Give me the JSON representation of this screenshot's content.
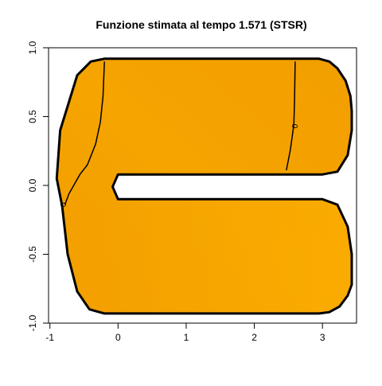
{
  "chart_data": {
    "type": "heatmap",
    "title": "Funzione stimata al tempo 1.571 (STSR)",
    "xlabel": "",
    "ylabel": "",
    "xlim": [
      -1.02,
      3.5
    ],
    "ylim": [
      -1.0,
      1.0
    ],
    "x_ticks": [
      -1,
      0,
      1,
      2,
      3
    ],
    "y_ticks": [
      -1.0,
      -0.5,
      0.0,
      0.5,
      1.0
    ],
    "grid": false,
    "colors": {
      "fill_light": "#ffb200",
      "fill_mid": "#f5a400",
      "fill_dark": "#f29e00",
      "outline": "#000000"
    },
    "domain_outline": [
      [
        -0.2,
        0.92
      ],
      [
        2.95,
        0.92
      ],
      [
        3.1,
        0.9
      ],
      [
        3.22,
        0.85
      ],
      [
        3.34,
        0.76
      ],
      [
        3.41,
        0.65
      ],
      [
        3.43,
        0.54
      ],
      [
        3.43,
        0.4
      ],
      [
        3.37,
        0.22
      ],
      [
        3.22,
        0.1
      ],
      [
        3.0,
        0.08
      ],
      [
        0.0,
        0.08
      ],
      [
        -0.08,
        -0.01
      ],
      [
        0.0,
        -0.1
      ],
      [
        3.0,
        -0.1
      ],
      [
        3.22,
        -0.14
      ],
      [
        3.37,
        -0.3
      ],
      [
        3.43,
        -0.5
      ],
      [
        3.43,
        -0.72
      ],
      [
        3.37,
        -0.8
      ],
      [
        3.25,
        -0.88
      ],
      [
        3.1,
        -0.92
      ],
      [
        2.95,
        -0.93
      ],
      [
        -0.2,
        -0.93
      ],
      [
        -0.42,
        -0.9
      ],
      [
        -0.6,
        -0.77
      ],
      [
        -0.74,
        -0.5
      ],
      [
        -0.82,
        -0.15
      ],
      [
        -0.9,
        0.05
      ],
      [
        -0.85,
        0.4
      ],
      [
        -0.6,
        0.8
      ],
      [
        -0.4,
        0.9
      ]
    ],
    "contours": [
      {
        "level": "0",
        "points": [
          [
            -0.2,
            0.9
          ],
          [
            -0.22,
            0.65
          ],
          [
            -0.26,
            0.46
          ],
          [
            -0.33,
            0.3
          ],
          [
            -0.45,
            0.15
          ],
          [
            -0.56,
            0.08
          ],
          [
            -0.72,
            -0.06
          ],
          [
            -0.78,
            -0.14
          ]
        ],
        "label_at": [
          -0.8,
          -0.14
        ]
      },
      {
        "level": "0",
        "points": [
          [
            2.6,
            0.9
          ],
          [
            2.59,
            0.62
          ],
          [
            2.58,
            0.44
          ],
          [
            2.53,
            0.26
          ],
          [
            2.47,
            0.11
          ]
        ],
        "label_at": [
          2.6,
          0.43
        ]
      }
    ]
  }
}
